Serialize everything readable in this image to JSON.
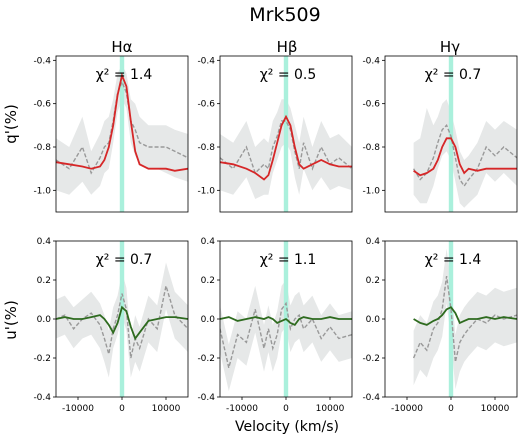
{
  "figure": {
    "title": "Mrk509",
    "xlabel": "Velocity (km/s)",
    "row_ylabels": [
      "q'(%)",
      "u'(%)"
    ],
    "column_titles": [
      "Hα",
      "Hβ",
      "Hγ"
    ]
  },
  "colors": {
    "q_model": "#d62728",
    "u_model": "#2e6b1f",
    "observed": "#999999",
    "uncertainty_band": "#e6e8e8",
    "line_center_band": "#aaf0dc"
  },
  "chart_data": [
    {
      "type": "line",
      "panel": "q-Halpha",
      "chi2_label": "χ² = 1.4",
      "xlim": [
        -15000,
        15000
      ],
      "ylim": [
        -1.1,
        -0.38
      ],
      "y_inverted": true,
      "xticks": [],
      "xtick_labels": [],
      "yticks": [
        -0.4,
        -0.6,
        -0.8,
        -1.0
      ],
      "ytick_labels": [
        "-0.4",
        "-0.6",
        "-0.8",
        "-1.0"
      ],
      "line_band": [
        -500,
        500
      ],
      "x": [
        -15000,
        -12000,
        -9000,
        -7000,
        -5000,
        -4000,
        -3000,
        -2000,
        -1000,
        0,
        1000,
        2000,
        3000,
        4000,
        6000,
        8000,
        10000,
        12000,
        15000
      ],
      "series": [
        {
          "role": "model",
          "values": [
            -0.87,
            -0.88,
            -0.89,
            -0.9,
            -0.89,
            -0.86,
            -0.8,
            -0.7,
            -0.56,
            -0.47,
            -0.52,
            -0.68,
            -0.82,
            -0.88,
            -0.9,
            -0.9,
            -0.9,
            -0.91,
            -0.9
          ]
        },
        {
          "role": "observed",
          "values": [
            -0.86,
            -0.9,
            -0.8,
            -0.92,
            -0.85,
            -0.8,
            -0.78,
            -0.68,
            -0.55,
            -0.5,
            -0.55,
            -0.68,
            -0.72,
            -0.78,
            -0.8,
            -0.8,
            -0.8,
            -0.82,
            -0.85
          ]
        },
        {
          "role": "band_low",
          "values": [
            -1.0,
            -1.02,
            -0.96,
            -1.02,
            -0.98,
            -0.92,
            -0.9,
            -0.78,
            -0.64,
            -0.58,
            -0.62,
            -0.78,
            -0.84,
            -0.88,
            -0.9,
            -0.9,
            -0.92,
            -0.94,
            -0.96
          ]
        },
        {
          "role": "band_high",
          "values": [
            -0.76,
            -0.8,
            -0.66,
            -0.82,
            -0.74,
            -0.68,
            -0.66,
            -0.58,
            -0.46,
            -0.42,
            -0.46,
            -0.58,
            -0.6,
            -0.66,
            -0.7,
            -0.7,
            -0.7,
            -0.72,
            -0.74
          ]
        }
      ]
    },
    {
      "type": "line",
      "panel": "q-Hbeta",
      "chi2_label": "χ² = 0.5",
      "xlim": [
        -15000,
        15000
      ],
      "ylim": [
        -1.1,
        -0.38
      ],
      "y_inverted": true,
      "xticks": [],
      "xtick_labels": [],
      "yticks": [
        -0.4,
        -0.6,
        -0.8,
        -1.0
      ],
      "ytick_labels": [
        "-0.4",
        "-0.6",
        "-0.8",
        "-1.0"
      ],
      "line_band": [
        -500,
        500
      ],
      "x": [
        -15000,
        -12000,
        -9000,
        -7000,
        -5000,
        -4000,
        -3000,
        -2000,
        -1000,
        0,
        1000,
        2000,
        3000,
        4000,
        6000,
        8000,
        10000,
        12000,
        15000
      ],
      "series": [
        {
          "role": "model",
          "values": [
            -0.87,
            -0.88,
            -0.9,
            -0.92,
            -0.95,
            -0.93,
            -0.86,
            -0.78,
            -0.7,
            -0.66,
            -0.7,
            -0.8,
            -0.88,
            -0.9,
            -0.88,
            -0.86,
            -0.88,
            -0.89,
            -0.89
          ]
        },
        {
          "role": "observed",
          "values": [
            -0.85,
            -0.9,
            -0.8,
            -0.92,
            -0.88,
            -0.9,
            -0.8,
            -0.75,
            -0.68,
            -0.68,
            -0.72,
            -0.82,
            -0.9,
            -0.78,
            -0.9,
            -0.8,
            -0.88,
            -0.85,
            -0.9
          ]
        },
        {
          "role": "band_low",
          "values": [
            -1.0,
            -1.02,
            -0.94,
            -1.04,
            -1.02,
            -1.02,
            -0.92,
            -0.86,
            -0.8,
            -0.78,
            -0.82,
            -0.94,
            -1.02,
            -0.9,
            -1.0,
            -0.94,
            -1.0,
            -0.98,
            -1.0
          ]
        },
        {
          "role": "band_high",
          "values": [
            -0.74,
            -0.78,
            -0.68,
            -0.8,
            -0.76,
            -0.78,
            -0.68,
            -0.64,
            -0.58,
            -0.58,
            -0.62,
            -0.7,
            -0.78,
            -0.66,
            -0.8,
            -0.68,
            -0.76,
            -0.74,
            -0.8
          ]
        }
      ]
    },
    {
      "type": "line",
      "panel": "q-Hgamma",
      "chi2_label": "χ² = 0.7",
      "xlim": [
        -15000,
        15000
      ],
      "ylim": [
        -1.1,
        -0.38
      ],
      "y_inverted": true,
      "xticks": [],
      "xtick_labels": [],
      "yticks": [
        -0.4,
        -0.6,
        -0.8,
        -1.0
      ],
      "ytick_labels": [
        "-0.4",
        "-0.6",
        "-0.8",
        "-1.0"
      ],
      "line_band": [
        -500,
        500
      ],
      "x": [
        -8500,
        -7000,
        -5500,
        -4000,
        -3000,
        -2000,
        -1000,
        0,
        1000,
        2000,
        3000,
        4000,
        6000,
        8000,
        10000,
        12000,
        15000
      ],
      "series": [
        {
          "role": "model",
          "values": [
            -0.91,
            -0.93,
            -0.92,
            -0.9,
            -0.86,
            -0.8,
            -0.76,
            -0.76,
            -0.8,
            -0.88,
            -0.92,
            -0.9,
            -0.91,
            -0.9,
            -0.9,
            -0.9,
            -0.9
          ]
        },
        {
          "role": "observed",
          "values": [
            -0.9,
            -0.95,
            -0.92,
            -0.85,
            -0.78,
            -0.72,
            -0.7,
            -0.75,
            -0.85,
            -0.95,
            -0.98,
            -0.95,
            -0.9,
            -0.8,
            -0.84,
            -0.8,
            -0.85
          ]
        },
        {
          "role": "band_low",
          "values": [
            -1.02,
            -1.06,
            -1.06,
            -0.98,
            -0.9,
            -0.84,
            -0.82,
            -0.86,
            -0.96,
            -1.06,
            -1.08,
            -1.06,
            -1.02,
            -0.92,
            -0.96,
            -0.92,
            -0.98
          ]
        },
        {
          "role": "band_high",
          "values": [
            -0.78,
            -0.76,
            -0.62,
            -0.7,
            -0.66,
            -0.6,
            -0.58,
            -0.64,
            -0.72,
            -0.82,
            -0.86,
            -0.84,
            -0.78,
            -0.68,
            -0.72,
            -0.68,
            -0.72
          ]
        }
      ]
    },
    {
      "type": "line",
      "panel": "u-Halpha",
      "chi2_label": "χ² = 0.7",
      "xlim": [
        -15000,
        15000
      ],
      "ylim": [
        -0.4,
        0.4
      ],
      "y_inverted": false,
      "xticks": [
        -10000,
        0,
        10000
      ],
      "xtick_labels": [
        "-10000",
        "0",
        "10000"
      ],
      "yticks": [
        0.4,
        0.2,
        0.0,
        -0.2,
        -0.4
      ],
      "ytick_labels": [
        "0.4",
        "0.2",
        "0.0",
        "-0.2",
        "-0.4"
      ],
      "line_band": [
        -500,
        500
      ],
      "x": [
        -15000,
        -13000,
        -11000,
        -9000,
        -7000,
        -5000,
        -4000,
        -3000,
        -2000,
        -1000,
        0,
        1000,
        2000,
        3000,
        4000,
        6000,
        8000,
        10000,
        12000,
        15000
      ],
      "series": [
        {
          "role": "model",
          "values": [
            0.0,
            0.01,
            0.0,
            0.0,
            0.01,
            0.02,
            0.0,
            -0.03,
            -0.07,
            -0.02,
            0.06,
            0.04,
            -0.04,
            -0.1,
            -0.07,
            -0.01,
            0.0,
            0.01,
            0.01,
            0.0
          ]
        },
        {
          "role": "observed",
          "values": [
            0.0,
            0.02,
            -0.05,
            0.0,
            0.03,
            -0.03,
            -0.1,
            -0.18,
            -0.05,
            0.02,
            0.13,
            0.05,
            -0.2,
            -0.1,
            -0.15,
            0.0,
            -0.05,
            0.17,
            0.02,
            -0.05
          ]
        },
        {
          "role": "band_low",
          "values": [
            -0.1,
            -0.08,
            -0.15,
            -0.1,
            -0.08,
            -0.15,
            -0.22,
            -0.3,
            -0.15,
            -0.08,
            0.02,
            -0.06,
            -0.3,
            -0.22,
            -0.27,
            -0.12,
            -0.17,
            0.05,
            -0.1,
            -0.17
          ]
        },
        {
          "role": "band_high",
          "values": [
            0.1,
            0.12,
            0.06,
            0.1,
            0.14,
            0.08,
            0.02,
            -0.06,
            0.06,
            0.12,
            0.24,
            0.16,
            -0.1,
            0.02,
            -0.04,
            0.12,
            0.07,
            0.29,
            0.14,
            0.07
          ]
        }
      ]
    },
    {
      "type": "line",
      "panel": "u-Hbeta",
      "chi2_label": "χ² = 1.1",
      "xlim": [
        -15000,
        15000
      ],
      "ylim": [
        -0.4,
        0.4
      ],
      "y_inverted": false,
      "xticks": [
        -10000,
        0,
        10000
      ],
      "xtick_labels": [
        "-10000",
        "0",
        "10000"
      ],
      "yticks": [
        0.4,
        0.2,
        0.0,
        -0.2,
        -0.4
      ],
      "ytick_labels": [
        "0.4",
        "0.2",
        "0.0",
        "-0.2",
        "-0.4"
      ],
      "line_band": [
        -500,
        500
      ],
      "x": [
        -15000,
        -13000,
        -11000,
        -9000,
        -7000,
        -5000,
        -4000,
        -3000,
        -2000,
        -1000,
        0,
        1000,
        2000,
        3000,
        4000,
        6000,
        8000,
        10000,
        12000,
        15000
      ],
      "series": [
        {
          "role": "model",
          "values": [
            0.0,
            0.01,
            -0.01,
            0.0,
            0.01,
            0.0,
            0.01,
            0.0,
            -0.02,
            -0.01,
            0.0,
            -0.02,
            -0.03,
            0.0,
            0.01,
            0.0,
            0.0,
            0.01,
            0.0,
            0.0
          ]
        },
        {
          "role": "observed",
          "values": [
            -0.05,
            -0.25,
            -0.08,
            -0.12,
            0.05,
            -0.15,
            -0.05,
            -0.15,
            -0.08,
            0.05,
            0.08,
            -0.05,
            0.0,
            0.02,
            -0.05,
            0.0,
            -0.1,
            -0.04,
            -0.1,
            -0.08
          ]
        },
        {
          "role": "band_low",
          "values": [
            -0.17,
            -0.37,
            -0.2,
            -0.24,
            -0.07,
            -0.27,
            -0.17,
            -0.27,
            -0.2,
            -0.07,
            -0.04,
            -0.17,
            -0.12,
            -0.1,
            -0.17,
            -0.12,
            -0.22,
            -0.16,
            -0.22,
            -0.2
          ]
        },
        {
          "role": "band_high",
          "values": [
            0.07,
            -0.13,
            0.04,
            0.0,
            0.17,
            -0.03,
            0.07,
            -0.03,
            0.04,
            0.17,
            0.2,
            0.07,
            0.12,
            0.14,
            0.07,
            0.12,
            0.02,
            0.08,
            0.02,
            0.04
          ]
        }
      ]
    },
    {
      "type": "line",
      "panel": "u-Hgamma",
      "chi2_label": "χ² = 1.4",
      "xlim": [
        -15000,
        15000
      ],
      "ylim": [
        -0.4,
        0.4
      ],
      "y_inverted": false,
      "xticks": [
        -10000,
        0,
        10000
      ],
      "xtick_labels": [
        "-10000",
        "0",
        "10000"
      ],
      "yticks": [
        0.4,
        0.2,
        0.0,
        -0.2,
        -0.4
      ],
      "ytick_labels": [
        "0.4",
        "0.2",
        "0.0",
        "-0.2",
        "-0.4"
      ],
      "line_band": [
        -500,
        500
      ],
      "x": [
        -8500,
        -7000,
        -5500,
        -4000,
        -3000,
        -2000,
        -1000,
        0,
        1000,
        2000,
        3000,
        4000,
        6000,
        8000,
        10000,
        12000,
        15000
      ],
      "series": [
        {
          "role": "model",
          "values": [
            0.0,
            -0.02,
            -0.03,
            -0.01,
            0.0,
            0.02,
            0.05,
            0.06,
            0.03,
            -0.02,
            -0.01,
            0.0,
            0.0,
            0.01,
            0.0,
            0.01,
            0.0
          ]
        },
        {
          "role": "observed",
          "values": [
            -0.2,
            -0.12,
            -0.16,
            -0.05,
            -0.02,
            0.05,
            0.22,
            0.05,
            -0.22,
            -0.12,
            -0.08,
            -0.05,
            0.0,
            -0.02,
            0.02,
            0.0,
            0.02
          ]
        },
        {
          "role": "band_low",
          "values": [
            -0.34,
            -0.26,
            -0.3,
            -0.2,
            -0.16,
            -0.09,
            0.08,
            -0.1,
            -0.36,
            -0.27,
            -0.22,
            -0.19,
            -0.14,
            -0.16,
            -0.12,
            -0.14,
            -0.12
          ]
        },
        {
          "role": "band_high",
          "values": [
            -0.06,
            0.02,
            -0.02,
            0.09,
            0.12,
            0.19,
            0.36,
            0.19,
            -0.08,
            0.02,
            0.06,
            0.09,
            0.14,
            0.12,
            0.16,
            0.14,
            0.16
          ]
        }
      ]
    }
  ]
}
